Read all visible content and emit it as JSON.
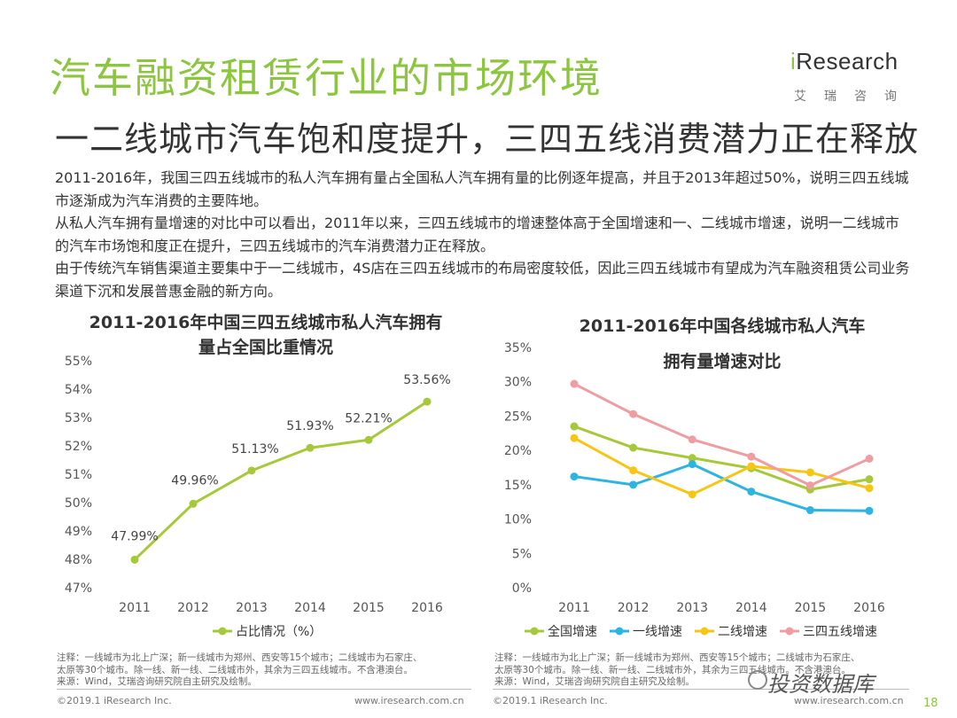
{
  "header": {
    "title": "汽车融资租赁行业的市场环境",
    "subtitle": "一二线城市汽车饱和度提升，三四五线消费潜力正在释放",
    "logo_text_i": "i",
    "logo_text_rest": "Research",
    "logo_cn": "艾瑞咨询"
  },
  "paragraphs": [
    "2011-2016年，我国三四五线城市的私人汽车拥有量占全国私人汽车拥有量的比例逐年提高，并且于2013年超过50%，说明三四五线城市逐渐成为汽车消费的主要阵地。",
    "从私人汽车拥有量增速的对比中可以看出，2011年以来，三四五线城市的增速整体高于全国增速和一、二线城市增速，说明一二线城市的汽车市场饱和度正在提升，三四五线城市的汽车消费潜力正在释放。",
    "由于传统汽车销售渠道主要集中于一二线城市，4S店在三四五线城市的布局密度较低，因此三四五线城市有望成为汽车融资租赁公司业务渠道下沉和发展普惠金融的新方向。"
  ],
  "chart_data": [
    {
      "type": "line",
      "title": "2011-2016年中国三四五线城市私人汽车拥有量占全国比重情况",
      "title_lines": [
        "2011-2016年中国三四五线城市私人汽车拥有",
        "量占全国比重情况"
      ],
      "categories": [
        "2011",
        "2012",
        "2013",
        "2014",
        "2015",
        "2016"
      ],
      "series": [
        {
          "name": "占比情况（%）",
          "values": [
            47.99,
            49.96,
            51.13,
            51.93,
            52.21,
            53.56
          ],
          "color": "#a6c93a"
        }
      ],
      "data_labels": [
        "47.99%",
        "49.96%",
        "51.13%",
        "51.93%",
        "52.21%",
        "53.56%"
      ],
      "yticks": [
        "47%",
        "48%",
        "49%",
        "50%",
        "51%",
        "52%",
        "53%",
        "54%",
        "55%"
      ],
      "ylim": [
        47,
        55
      ],
      "grid": false,
      "legend": "bottom"
    },
    {
      "type": "line",
      "title": "2011-2016年中国各线城市私人汽车拥有量增速对比",
      "title_lines": [
        "2011-2016年中国各线城市私人汽车",
        "拥有量增速对比"
      ],
      "categories": [
        "2011",
        "2012",
        "2013",
        "2014",
        "2015",
        "2016"
      ],
      "series": [
        {
          "name": "全国增速",
          "values": [
            23.5,
            20.4,
            18.9,
            17.4,
            14.3,
            15.8
          ],
          "color": "#a6c93a"
        },
        {
          "name": "一线增速",
          "values": [
            16.2,
            15.0,
            18.0,
            14.0,
            11.3,
            11.2
          ],
          "color": "#2cb5e0"
        },
        {
          "name": "二线增速",
          "values": [
            21.8,
            17.1,
            13.6,
            17.7,
            16.8,
            14.5
          ],
          "color": "#f7c614"
        },
        {
          "name": "三四五线增速",
          "values": [
            29.7,
            25.3,
            21.6,
            19.1,
            14.9,
            18.8
          ],
          "color": "#ef9da1"
        }
      ],
      "yticks": [
        "0%",
        "5%",
        "10%",
        "15%",
        "20%",
        "25%",
        "30%",
        "35%"
      ],
      "ylim": [
        0,
        35
      ],
      "grid": false,
      "legend": "bottom"
    }
  ],
  "notes": {
    "left": [
      "注释：一线城市为北上广深；新一线城市为郑州、西安等15个城市；二线城市为石家庄、",
      "太原等30个城市。除一线、新一线、二线城市外，其余为三四五线城市。不含港澳台。",
      "来源：Wind，艾瑞咨询研究院自主研究及绘制。"
    ],
    "right": [
      "注释：一线城市为北上广深；新一线城市为郑州、西安等15个城市；二线城市为石家庄、",
      "太原等30个城市。除一线、新一线、二线城市外，其余为三四五线城市。不含港澳台。",
      "来源：Wind，艾瑞咨询研究院自主研究及绘制。"
    ]
  },
  "footer": {
    "copyright_left": "©2019.1 iResearch Inc.",
    "url_left": "www.iresearch.com.cn",
    "copyright_right": "©2019.1 iResearch Inc.",
    "url_right": "www.iresearch.com.cn",
    "page": "18"
  },
  "watermark": "投资数据库"
}
